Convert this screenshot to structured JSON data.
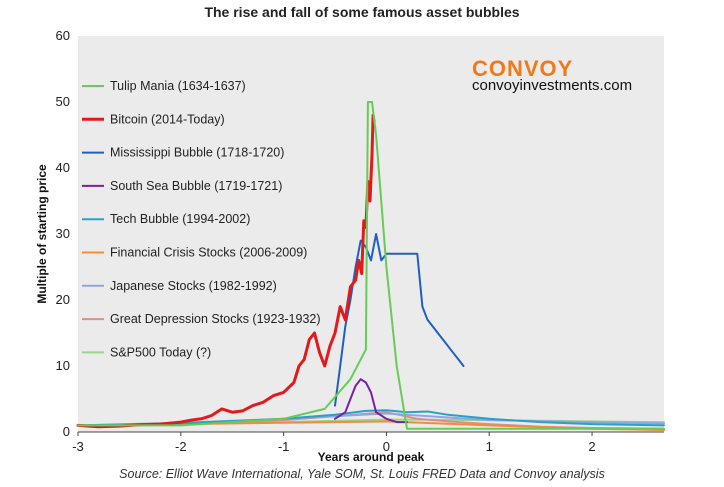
{
  "chart_data": {
    "type": "line",
    "title": "The rise and fall of some famous asset bubbles",
    "xlabel": "Years around peak",
    "ylabel": "Multiple of starting price",
    "xlim": [
      -3,
      2.7
    ],
    "ylim": [
      0,
      60
    ],
    "xticks": [
      "-3",
      "-2",
      "-1",
      "0",
      "1",
      "2"
    ],
    "yticks": [
      "0",
      "10",
      "20",
      "30",
      "40",
      "50",
      "60"
    ],
    "grid": false,
    "legend_position": "left-inside",
    "source": "Source: Elliot Wave International, Yale SOM, St. Louis FRED Data and Convoy analysis",
    "brand": {
      "name": "CONVOY",
      "url": "convoyinvestments.com",
      "color": "#f07a19"
    },
    "background": "#ebebeb",
    "series": [
      {
        "name": "Tulip Mania (1634-1637)",
        "color": "#66cc55",
        "width": 2,
        "x": [
          -3,
          -2,
          -1,
          -0.6,
          -0.35,
          -0.25,
          -0.2,
          -0.18,
          -0.14,
          -0.1,
          0,
          0.1,
          0.2,
          0.5,
          1,
          2,
          2.7
        ],
        "y": [
          1,
          1,
          2,
          3.5,
          8,
          11,
          12.5,
          50,
          50,
          45,
          25,
          10,
          0.5,
          0.5,
          0.5,
          0.5,
          0.5
        ]
      },
      {
        "name": "Bitcoin (2014-Today)",
        "color": "#e31a1c",
        "width": 3,
        "x": [
          -3,
          -2.8,
          -2.6,
          -2.4,
          -2.2,
          -2.0,
          -1.9,
          -1.8,
          -1.7,
          -1.6,
          -1.5,
          -1.4,
          -1.3,
          -1.2,
          -1.1,
          -1.0,
          -0.9,
          -0.85,
          -0.8,
          -0.75,
          -0.7,
          -0.65,
          -0.6,
          -0.55,
          -0.5,
          -0.45,
          -0.4,
          -0.35,
          -0.3,
          -0.27,
          -0.24,
          -0.22,
          -0.2,
          -0.18,
          -0.16,
          -0.14,
          -0.13,
          -0.12
        ],
        "y": [
          1,
          0.8,
          0.9,
          1.1,
          1.2,
          1.5,
          1.8,
          2.0,
          2.5,
          3.5,
          3.0,
          3.2,
          4.0,
          4.5,
          5.5,
          6.0,
          7.5,
          10,
          11,
          14,
          15,
          12,
          10,
          13,
          15,
          19,
          17,
          22,
          23,
          26,
          24,
          32,
          31,
          38,
          35,
          42,
          48,
          47
        ]
      },
      {
        "name": "Mississippi Bubble (1718-1720)",
        "color": "#1f5fbf",
        "width": 2,
        "x": [
          -0.5,
          -0.45,
          -0.4,
          -0.35,
          -0.3,
          -0.25,
          -0.2,
          -0.15,
          -0.1,
          -0.05,
          0,
          0.1,
          0.2,
          0.3,
          0.35,
          0.4,
          0.45,
          0.5,
          0.55,
          0.6,
          0.65,
          0.7,
          0.75
        ],
        "y": [
          4,
          10,
          16,
          20,
          25,
          29,
          28,
          26,
          30,
          26,
          27,
          27,
          27,
          27,
          19,
          17,
          16,
          15,
          14,
          13,
          12,
          11,
          10
        ]
      },
      {
        "name": "South Sea Bubble (1719-1721)",
        "color": "#7b1fa2",
        "width": 2,
        "x": [
          -0.5,
          -0.4,
          -0.35,
          -0.3,
          -0.25,
          -0.2,
          -0.15,
          -0.1,
          0,
          0.1,
          0.2
        ],
        "y": [
          2,
          3,
          5,
          7,
          8,
          7.5,
          6,
          3,
          2,
          1.5,
          1.5
        ]
      },
      {
        "name": "Tech Bubble (1994-2002)",
        "color": "#2aa0c8",
        "width": 2,
        "x": [
          -3,
          -2,
          -1,
          -0.5,
          -0.2,
          0,
          0.2,
          0.4,
          0.6,
          1,
          1.5,
          2,
          2.7
        ],
        "y": [
          1,
          1.3,
          2,
          2.6,
          3.2,
          3.3,
          3.0,
          3.1,
          2.6,
          2.0,
          1.5,
          1.2,
          1.0
        ]
      },
      {
        "name": "Financial Crisis Stocks (2006-2009)",
        "color": "#f28c38",
        "width": 2,
        "x": [
          -3,
          -2,
          -1,
          0,
          1,
          2,
          2.7
        ],
        "y": [
          1,
          1.2,
          1.4,
          1.6,
          1.0,
          0.5,
          0.3
        ]
      },
      {
        "name": "Japanese Stocks (1982-1992)",
        "color": "#8ea6e0",
        "width": 2,
        "x": [
          -3,
          -2,
          -1,
          0,
          1,
          2,
          2.7
        ],
        "y": [
          1,
          1.4,
          2.0,
          2.8,
          1.8,
          1.5,
          1.3
        ]
      },
      {
        "name": "Great Depression Stocks (1923-1932)",
        "color": "#e08c8c",
        "width": 2,
        "x": [
          -3,
          -2,
          -1,
          -0.5,
          0,
          0.3,
          0.6,
          1,
          1.5,
          2,
          2.7
        ],
        "y": [
          1,
          1.2,
          1.8,
          2.4,
          3.0,
          2.0,
          1.6,
          1.2,
          0.8,
          0.6,
          0.5
        ]
      },
      {
        "name": "S&P500 Today (?)",
        "color": "#9ad58a",
        "width": 2,
        "x": [
          -3,
          -2,
          -1,
          0,
          1,
          2,
          2.7
        ],
        "y": [
          1,
          1.2,
          1.5,
          1.9,
          1.8,
          1.6,
          1.5
        ]
      }
    ]
  }
}
